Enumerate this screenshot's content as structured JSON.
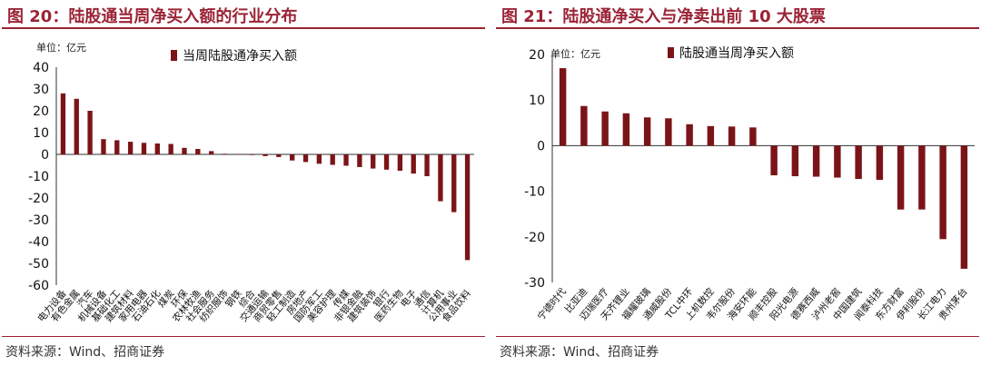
{
  "colors": {
    "accent": "#9b2335",
    "bar": "#7b1418",
    "text": "#111111"
  },
  "left": {
    "title": "图 20：陆股通当周净买入额的行业分布",
    "source": "资料来源：Wind、招商证券"
  },
  "right": {
    "title": "图 21：陆股通净买入与净卖出前 10 大股票",
    "source": "资料来源：Wind、招商证券"
  },
  "chart_data": [
    {
      "type": "bar",
      "title": "图 20：陆股通当周净买入额的行业分布",
      "unit_label": "单位：亿元",
      "legend": [
        "当周陆股通净买入额"
      ],
      "ylim": [
        -60,
        40
      ],
      "yticks": [
        40,
        30,
        20,
        10,
        0,
        -10,
        -20,
        -30,
        -40,
        -50,
        -60
      ],
      "categories": [
        "电力设备",
        "有色金属",
        "汽车",
        "机械设备",
        "基础化工",
        "建筑材料",
        "家用电器",
        "石油石化",
        "煤炭",
        "环保",
        "农林牧渔",
        "社会服务",
        "纺织服饰",
        "钢铁",
        "综合",
        "交通运输",
        "商贸零售",
        "轻工制造",
        "房地产",
        "国防军工",
        "美容护理",
        "传媒",
        "非银金融",
        "建筑装饰",
        "银行",
        "医药生物",
        "电子",
        "通信",
        "计算机",
        "公用事业",
        "食品饮料"
      ],
      "values": [
        28,
        25.5,
        20,
        7,
        6.5,
        5.8,
        5.3,
        5,
        4.8,
        3,
        2.5,
        1.5,
        0.3,
        0.1,
        -0.3,
        -0.8,
        -1.2,
        -2.8,
        -3.5,
        -4.3,
        -4.8,
        -5.2,
        -5.8,
        -6.5,
        -7,
        -7.5,
        -8.8,
        -10,
        -21.5,
        -26.5,
        -48.5
      ],
      "label_rotation": -50
    },
    {
      "type": "bar",
      "title": "图 21：陆股通净买入与净卖出前 10 大股票",
      "unit_label": "单位：亿元",
      "legend": [
        "陆股通当周净买入额"
      ],
      "ylim": [
        -30,
        20
      ],
      "yticks": [
        20,
        10,
        0,
        -10,
        -20,
        -30
      ],
      "categories": [
        "宁德时代",
        "比亚迪",
        "迈瑞医疗",
        "天齐锂业",
        "福耀玻璃",
        "通威股份",
        "TCL中环",
        "上机数控",
        "韦尔股份",
        "海安环能",
        "顺丰控股",
        "阳光电源",
        "德赛西威",
        "泸州老窖",
        "中国建筑",
        "闻泰科技",
        "东方财富",
        "伊利股份",
        "长江电力",
        "贵州茅台"
      ],
      "values": [
        17,
        8.7,
        7.5,
        7.1,
        6.2,
        6,
        4.7,
        4.3,
        4.2,
        4,
        -6.5,
        -6.7,
        -6.8,
        -7,
        -7.3,
        -7.5,
        -14,
        -14,
        -20.5,
        -27
      ],
      "label_rotation": -50
    }
  ]
}
